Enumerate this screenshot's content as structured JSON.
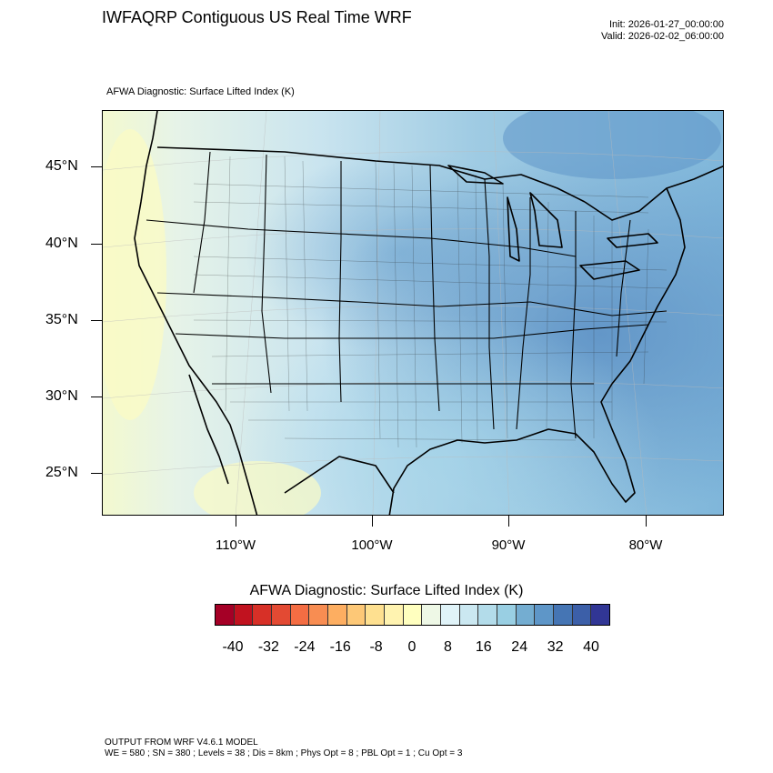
{
  "header": {
    "title": "IWFAQRP Contiguous US Real Time WRF",
    "init": "Init: 2026-01-27_00:00:00",
    "valid": "Valid: 2026-02-02_06:00:00"
  },
  "map": {
    "subtitle": "AFWA Diagnostic: Surface Lifted Index   (K)",
    "lat_labels": [
      "45°N",
      "40°N",
      "35°N",
      "30°N",
      "25°N"
    ],
    "lon_labels": [
      "110°W",
      "100°W",
      "90°W",
      "80°W"
    ]
  },
  "colorbar": {
    "title": "AFWA Diagnostic: Surface Lifted Index  (K)",
    "labels": [
      "-40",
      "-32",
      "-24",
      "-16",
      "-8",
      "0",
      "8",
      "16",
      "24",
      "32",
      "40"
    ],
    "colors": [
      "#a50026",
      "#c1121f",
      "#d73027",
      "#e34a33",
      "#f46d43",
      "#f88d52",
      "#fdae61",
      "#fdc877",
      "#fee090",
      "#fff3b0",
      "#ffffbf",
      "#eef8e6",
      "#e0f3f8",
      "#cbe8f1",
      "#b3dcea",
      "#99cfe3",
      "#74add1",
      "#5e96c8",
      "#4575b4",
      "#3c5fa8",
      "#313695"
    ]
  },
  "footer": {
    "line1": "OUTPUT FROM WRF V4.6.1 MODEL",
    "line2": "WE = 580 ; SN = 380 ; Levels = 38 ; Dis = 8km ; Phys Opt = 8 ; PBL Opt = 1 ; Cu Opt = 3"
  }
}
